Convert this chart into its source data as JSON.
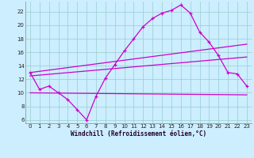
{
  "xlabel": "Windchill (Refroidissement éolien,°C)",
  "ylabel": "",
  "bg_color": "#cceeff",
  "grid_color": "#99cccc",
  "line_color": "#cc00cc",
  "marker": "+",
  "x_ticks": [
    0,
    1,
    2,
    3,
    4,
    5,
    6,
    7,
    8,
    9,
    10,
    11,
    12,
    13,
    14,
    15,
    16,
    17,
    18,
    19,
    20,
    21,
    22,
    23
  ],
  "y_ticks": [
    6,
    8,
    10,
    12,
    14,
    16,
    18,
    20,
    22
  ],
  "xlim": [
    -0.5,
    23.5
  ],
  "ylim": [
    5.5,
    23.5
  ],
  "line1_x": [
    0,
    1,
    2,
    3,
    4,
    5,
    6,
    7,
    8,
    9,
    10,
    11,
    12,
    13,
    14,
    15,
    16,
    17,
    18,
    19,
    20,
    21,
    22,
    23
  ],
  "line1_y": [
    13.0,
    10.5,
    11.0,
    10.0,
    9.0,
    7.5,
    6.0,
    9.5,
    12.2,
    14.2,
    16.2,
    18.0,
    19.8,
    21.0,
    21.8,
    22.2,
    23.0,
    21.8,
    19.0,
    17.5,
    15.5,
    13.0,
    12.8,
    11.0
  ],
  "line2_x": [
    0,
    23
  ],
  "line2_y": [
    10.0,
    9.7
  ],
  "line3_x": [
    0,
    23
  ],
  "line3_y": [
    13.0,
    17.2
  ],
  "line4_x": [
    0,
    23
  ],
  "line4_y": [
    12.5,
    15.3
  ],
  "tick_fontsize": 5.0,
  "xlabel_fontsize": 5.5,
  "linewidth": 0.9
}
